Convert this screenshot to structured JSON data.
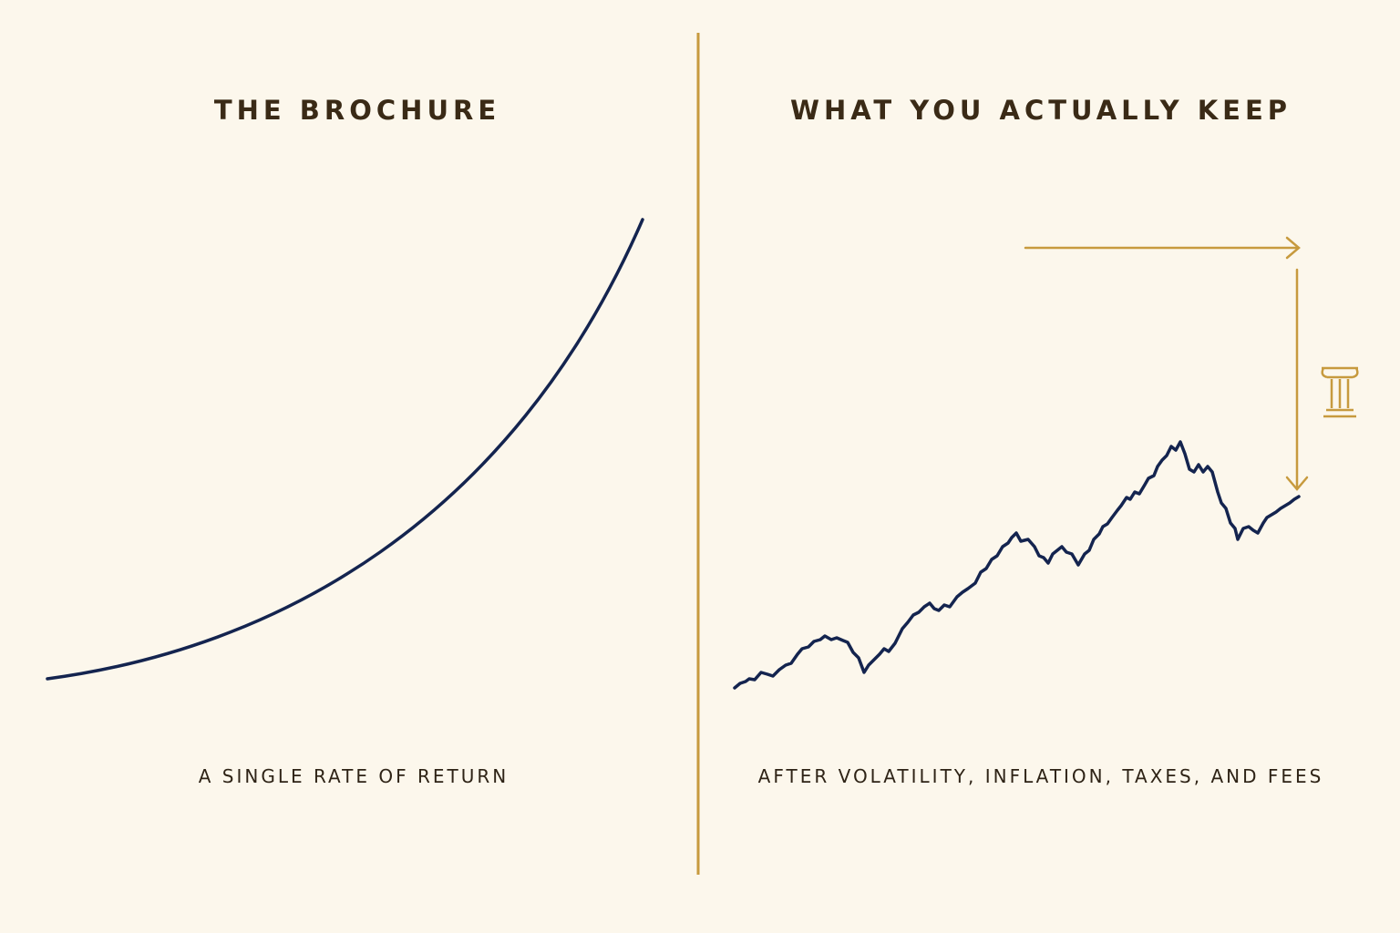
{
  "left": {
    "title": "THE BROCHURE",
    "caption": "A SINGLE RATE OF RETURN"
  },
  "right": {
    "title": "WHAT YOU ACTUALLY KEEP",
    "caption": "AFTER VOLATILITY, INFLATION, TAXES, AND FEES"
  }
}
